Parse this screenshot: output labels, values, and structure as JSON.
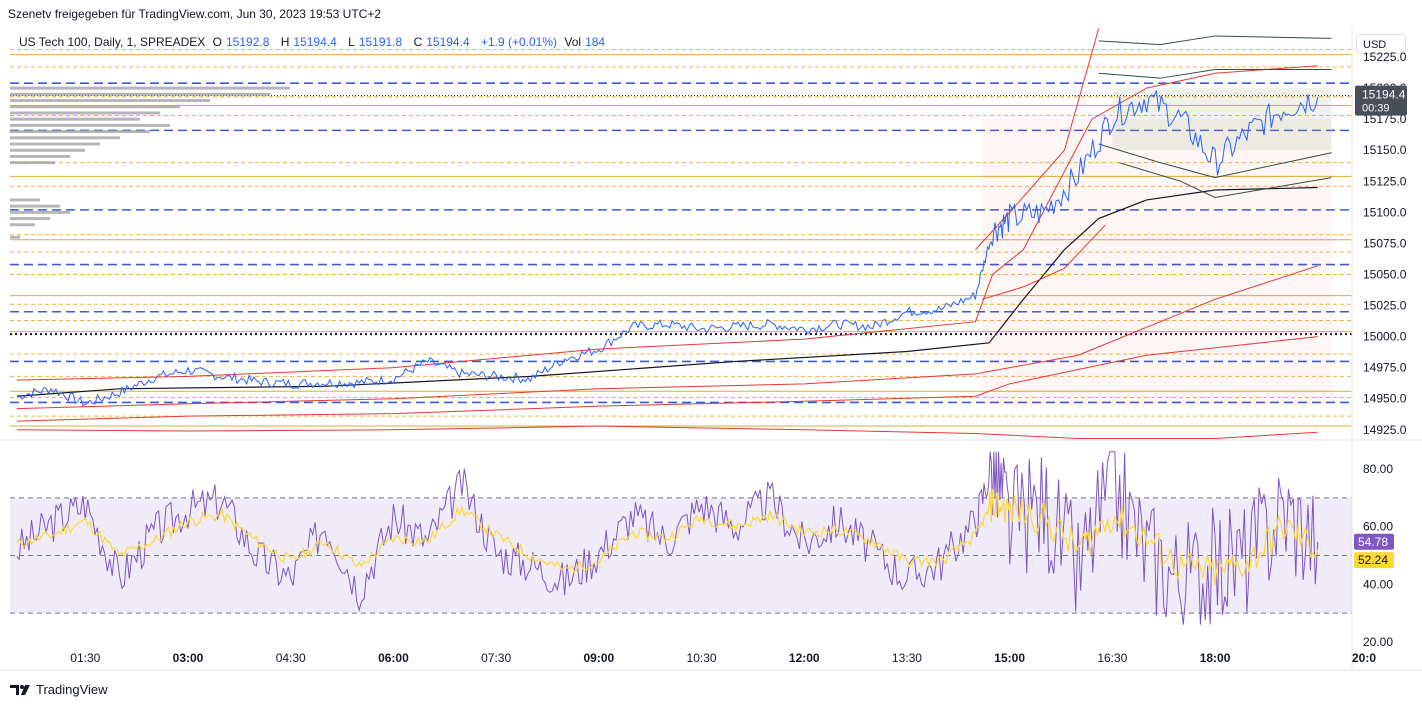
{
  "header": {
    "shared_by": "Szenetv freigegeben für TradingView.com, Jun 30, 2023 19:53 UTC+2",
    "symbol": "US Tech 100, Daily, 1, SPREADEX",
    "o_label": "O",
    "o_value": "15192.8",
    "h_label": "H",
    "h_value": "15194.4",
    "l_label": "L",
    "l_value": "15191.8",
    "c_label": "C",
    "c_value": "15194.4",
    "change": "+1.9 (+0.01%)",
    "vol_label": "Vol",
    "vol_value": "184"
  },
  "currency": "USD",
  "price_badge": {
    "price": "15194.4",
    "countdown": "00:39"
  },
  "rsi_badges": {
    "rsi": "54.78",
    "ma": "52.24"
  },
  "brand": {
    "name": "TradingView"
  },
  "colors": {
    "price_line": "#2962ff",
    "band_red": "#e53935",
    "vwap_black": "#131722",
    "level_orange": "#f7a21b",
    "level_gold": "#d4a017",
    "level_blue": "#1e3ec9",
    "rsi_line": "#7e57c2",
    "rsi_ma": "#fdd835",
    "rsi_zone": "#7e57c2"
  },
  "chart_data": [
    {
      "type": "line",
      "name": "price",
      "x_ticks": [
        "01:30",
        "03:00",
        "04:30",
        "06:00",
        "07:30",
        "09:00",
        "10:30",
        "12:00",
        "13:30",
        "15:00",
        "16:30",
        "18:00",
        "20:0"
      ],
      "y_ticks": [
        "14925.0",
        "14950.0",
        "14975.0",
        "15000.0",
        "15025.0",
        "15050.0",
        "15075.0",
        "15100.0",
        "15125.0",
        "15150.0",
        "15175.0",
        "15200.0",
        "15225.0"
      ],
      "ylim": [
        14920,
        15250
      ],
      "series": [
        {
          "x": [
            0.5,
            1.0,
            1.5,
            2.0,
            2.5,
            3.0,
            3.5,
            4.0,
            4.5,
            5.0,
            5.5,
            6.0,
            6.5,
            7.0,
            7.5,
            8.0,
            8.5,
            9.0,
            9.5,
            10.0,
            10.5,
            11.0,
            11.5,
            12.0,
            12.5,
            13.0,
            13.5,
            14.0,
            14.5,
            14.75,
            15.0,
            15.5,
            16.0,
            16.5,
            17.0,
            17.5,
            18.0,
            18.5,
            19.0,
            19.5
          ],
          "y": [
            14952,
            14958,
            14946,
            14955,
            14967,
            14973,
            14968,
            14964,
            14962,
            14963,
            14963,
            14966,
            14980,
            14970,
            14968,
            14966,
            14982,
            14990,
            15008,
            15010,
            15006,
            15008,
            15010,
            15006,
            15010,
            15008,
            15020,
            15022,
            15033,
            15085,
            15095,
            15100,
            15130,
            15178,
            15192,
            15175,
            15140,
            15165,
            15184,
            15193
          ]
        }
      ],
      "levels": [
        14928,
        14936,
        14947,
        14951,
        14956,
        14968,
        14980,
        14986,
        15004,
        15013,
        15020,
        15026,
        15033,
        15050,
        15058,
        15068,
        15078,
        15082,
        15102,
        15121,
        15129,
        15140,
        15166,
        15178,
        15186,
        15193,
        15204,
        15217,
        15227,
        15231
      ]
    },
    {
      "type": "line",
      "name": "rsi",
      "y_ticks": [
        "20.00",
        "40.00",
        "60.00",
        "80.00"
      ],
      "ylim": [
        20,
        88
      ],
      "bands": [
        30,
        50,
        70
      ],
      "series": [
        {
          "x": [
            0.5,
            1.0,
            1.5,
            2.0,
            2.5,
            3.0,
            3.5,
            4.0,
            4.5,
            5.0,
            5.5,
            6.0,
            6.5,
            7.0,
            7.5,
            8.0,
            8.5,
            9.0,
            9.5,
            10.0,
            10.5,
            11.0,
            11.5,
            12.0,
            12.5,
            13.0,
            13.5,
            14.0,
            14.5,
            14.75,
            15.0,
            15.5,
            16.0,
            16.5,
            17.0,
            17.5,
            18.0,
            18.5,
            19.0,
            19.5
          ],
          "y": [
            52,
            61,
            68,
            42,
            58,
            66,
            69,
            50,
            42,
            61,
            38,
            63,
            55,
            75,
            51,
            47,
            41,
            51,
            64,
            55,
            68,
            60,
            70,
            54,
            62,
            52,
            42,
            48,
            62,
            82,
            61,
            68,
            44,
            75,
            52,
            42,
            46,
            50,
            66,
            54.78
          ]
        },
        {
          "x": [
            0.5,
            1.0,
            1.5,
            2.0,
            2.5,
            3.0,
            3.5,
            4.0,
            4.5,
            5.0,
            5.5,
            6.0,
            6.5,
            7.0,
            7.5,
            8.0,
            8.5,
            9.0,
            9.5,
            10.0,
            10.5,
            11.0,
            11.5,
            12.0,
            12.5,
            13.0,
            13.5,
            14.0,
            14.5,
            14.75,
            15.0,
            15.5,
            16.0,
            16.5,
            17.0,
            17.5,
            18.0,
            18.5,
            19.0,
            19.5
          ],
          "y": [
            54,
            57,
            62,
            50,
            55,
            62,
            64,
            55,
            48,
            55,
            46,
            56,
            55,
            66,
            57,
            50,
            45,
            48,
            58,
            56,
            63,
            60,
            64,
            58,
            59,
            55,
            48,
            48,
            57,
            68,
            66,
            63,
            52,
            64,
            56,
            46,
            44,
            48,
            60,
            52.24
          ]
        }
      ]
    }
  ]
}
